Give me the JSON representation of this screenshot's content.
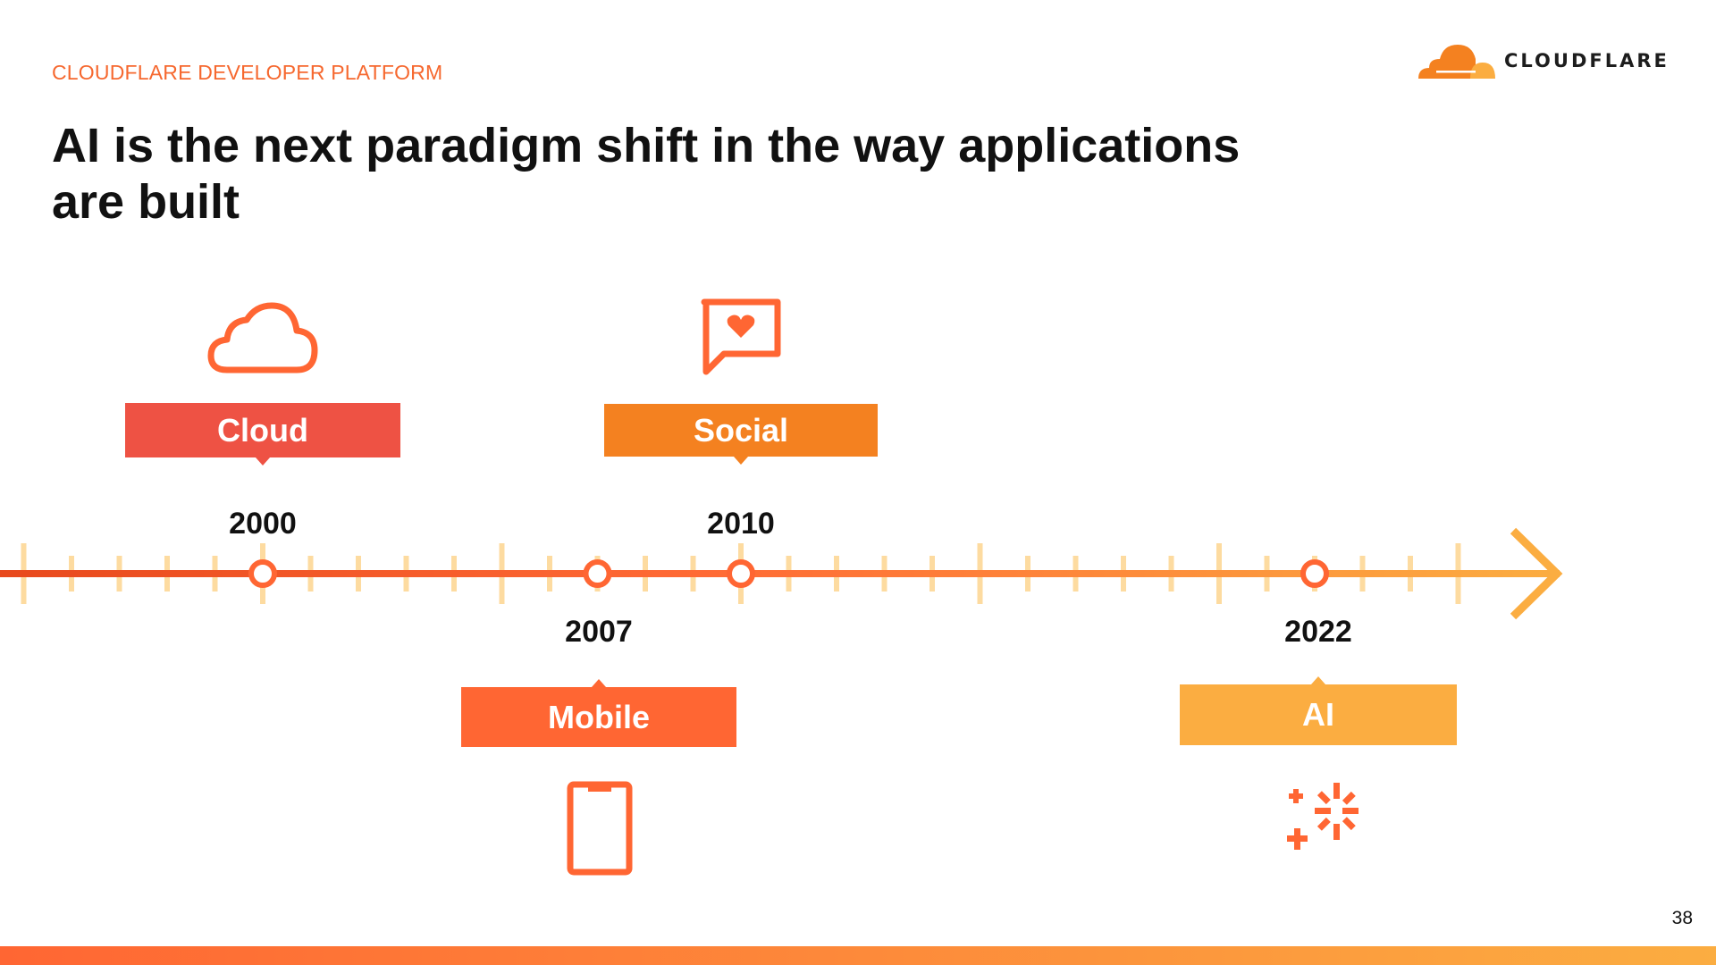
{
  "header": {
    "eyebrow": "CLOUDFLARE DEVELOPER PLATFORM",
    "logo_text": "CLOUDFLARE"
  },
  "title": "AI is the next paradigm shift in the way applications are built",
  "timeline": {
    "milestones": [
      {
        "year": "2000",
        "label": "Cloud",
        "icon": "cloud-icon",
        "color": "#ee5244",
        "position": "above"
      },
      {
        "year": "2007",
        "label": "Mobile",
        "icon": "phone-icon",
        "color": "#ff6633",
        "position": "below"
      },
      {
        "year": "2010",
        "label": "Social",
        "icon": "heart-chat-icon",
        "color": "#f48120",
        "position": "above"
      },
      {
        "year": "2022",
        "label": "AI",
        "icon": "sparkle-icon",
        "color": "#fbad41",
        "position": "below"
      }
    ],
    "line_colors": [
      "#e8491d",
      "#fbad41"
    ],
    "tick_color": "#fddba0"
  },
  "page_number": "38"
}
